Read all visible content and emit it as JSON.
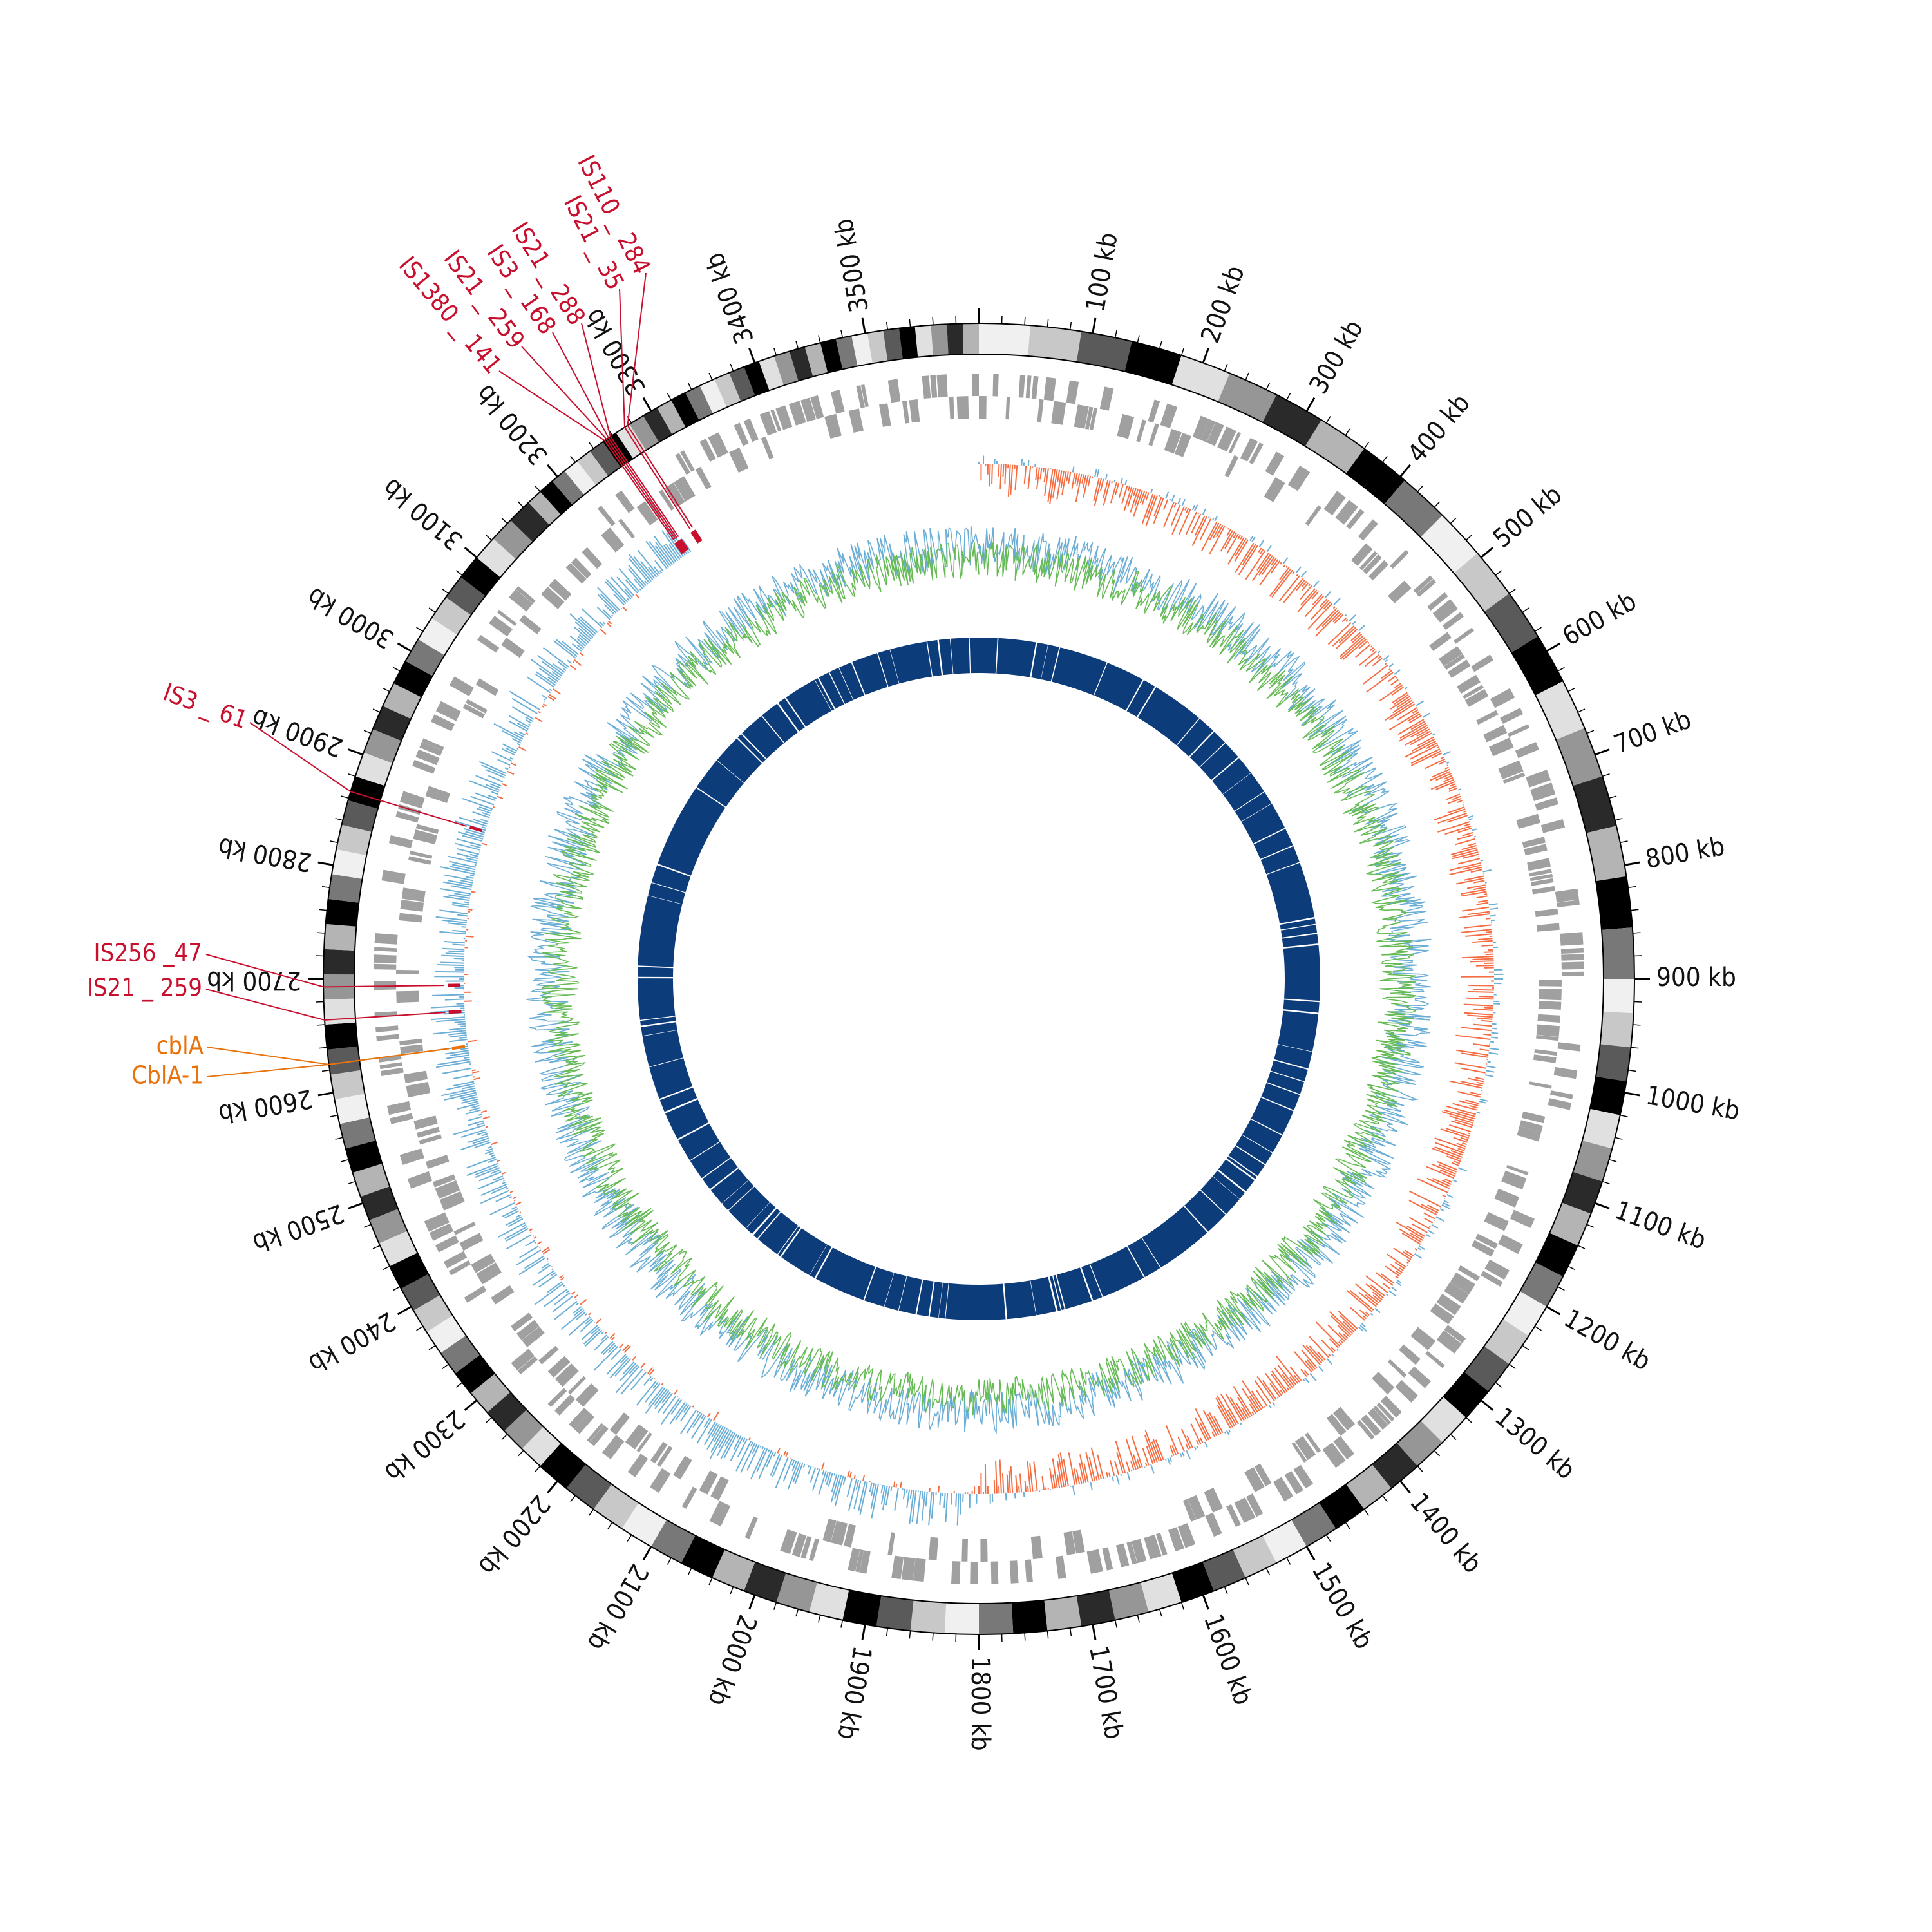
{
  "genome": {
    "length_kb": 3600,
    "tick_step_kb": 100,
    "tick_unit": "kb",
    "tick_labels": [
      "100 kb",
      "200 kb",
      "300 kb",
      "400 kb",
      "500 kb",
      "600 kb",
      "700 kb",
      "800 kb",
      "900 kb",
      "1000 kb",
      "1100 kb",
      "1200 kb",
      "1300 kb",
      "1400 kb",
      "1500 kb",
      "1600 kb",
      "1700 kb",
      "1800 kb",
      "1900 kb",
      "2000 kb",
      "2100 kb",
      "2200 kb",
      "2300 kb",
      "2400 kb",
      "2500 kb",
      "2600 kb",
      "2700 kb",
      "2800 kb",
      "2900 kb",
      "3000 kb",
      "3100 kb",
      "3200 kb",
      "3300 kb",
      "3400 kb",
      "3500 kb"
    ]
  },
  "colors": {
    "is_element": "#c8102e",
    "resistance_gene": "#e8730c",
    "gene_blocks": "#a0a0a0",
    "gc_skew_positive": "#6baed6",
    "gc_skew_negative": "#f46d43",
    "gc_content": "#66bb55",
    "gc_content_secondary": "#6baed6",
    "inner_ring": "#0d3c7a",
    "ideogram_dark": "#000000",
    "ideogram_light": "#f0f0f0"
  },
  "annotations": [
    {
      "label": "IS110 _ 284",
      "kb": 3276,
      "color_key": "is_element"
    },
    {
      "label": "IS21 _ 35",
      "kb": 3273,
      "color_key": "is_element"
    },
    {
      "label": "IS21 _ 288",
      "kb": 3258,
      "color_key": "is_element"
    },
    {
      "label": "IS3 _ 168",
      "kb": 3256,
      "color_key": "is_element"
    },
    {
      "label": "IS21 _ 259",
      "kb": 3254,
      "color_key": "is_element"
    },
    {
      "label": "IS1380 _ 141",
      "kb": 3252,
      "color_key": "is_element"
    },
    {
      "label": "IS3 _ 61",
      "kb": 2866,
      "color_key": "is_element"
    },
    {
      "label": "IS256 _47",
      "kb": 2693,
      "color_key": "is_element"
    },
    {
      "label": "IS21 _ 259",
      "kb": 2664,
      "color_key": "is_element"
    },
    {
      "label": "cblA",
      "kb": 2625,
      "color_key": "resistance_gene"
    },
    {
      "label": "CblA-1",
      "kb": 2625,
      "color_key": "resistance_gene"
    }
  ]
}
